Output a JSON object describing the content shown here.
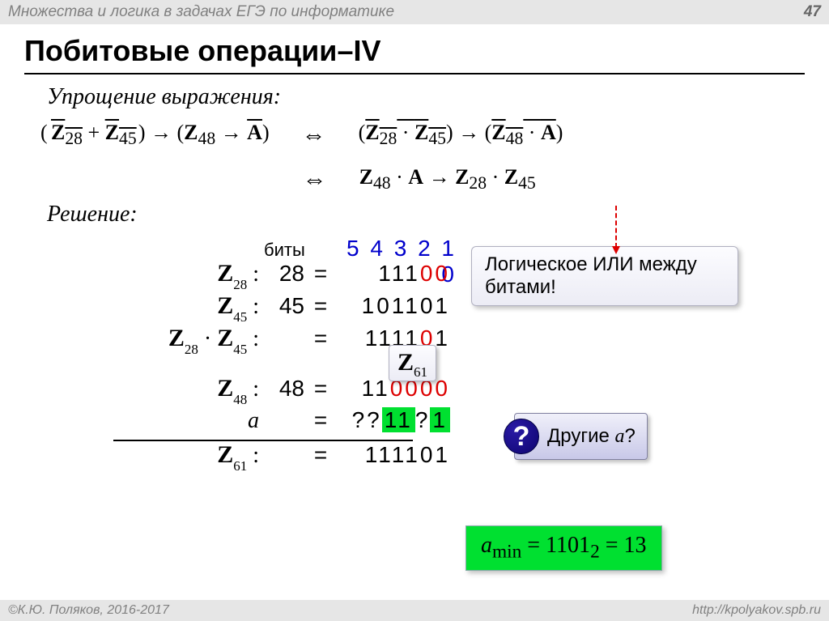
{
  "header": {
    "title": "Множества и логика в задачах ЕГЭ по информатике",
    "page": "47"
  },
  "title": "Побитовые операции–IV",
  "sub1": "Упрощение выражения:",
  "sub2": "Решение:",
  "formula": {
    "left": "(  <span class='over'><b>Z</b><sub>28</sub></span> + <span class='over'><b>Z</b><sub>45</sub></span> ) → (<b>Z</b><sub>48</sub> → <span class='over'><b>A</b></span>)",
    "r1": "(<span class='over'><b>Z</b><sub>28</sub> · <b>Z</b><sub>45</sub></span>) → (<span class='over'><b>Z</b><sub>48</sub> · <b>A</b></span>)",
    "r2": "<b>Z</b><sub>48</sub> · <b>A</b> → <b>Z</b><sub>28</sub> · <b>Z</b><sub>45</sub>"
  },
  "bits_label": "биты",
  "bits_idx": "5 4 3 2 1 0",
  "rows": [
    {
      "lab": "<span class='bZ'>Z</span><span class='sub'>28</span> :",
      "n": "28",
      "eq": "=",
      "bin": "111<span class='r'>00</span>"
    },
    {
      "lab": "<span class='bZ'>Z</span><span class='sub'>45</span> :",
      "n": "45",
      "eq": "=",
      "bin": "101101"
    },
    {
      "lab": "<span class='bZ'>Z</span><span class='sub'>28</span> · <span class='bZ'>Z</span><span class='sub'>45</span> :",
      "n": "",
      "eq": "=",
      "bin": "1111<span class='r'>0</span>1"
    }
  ],
  "rows2": [
    {
      "lab": "<span class='bZ'>Z</span><span class='sub'>48</span> :",
      "n": "48",
      "eq": "=",
      "bin": "11<span class='r'>0000</span>"
    },
    {
      "lab": "<span class='it serif'>a</span>",
      "n": "",
      "eq": "=",
      "bin": "??<span class='g-hl'>11</span>?<span class='g-hl'>1</span>"
    },
    {
      "lab": "<span class='bZ'>Z</span><span class='sub'>61</span> :",
      "n": "",
      "eq": "=",
      "bin": "111101"
    }
  ],
  "callout": "Логическое ИЛИ между битами!",
  "z61": "<span class='bZ serif'>Z</span><span class='sub serif'>61</span>",
  "question": "Другие <span class='it serif'>a</span>?",
  "answer": "<span class='it'>a</span><sub>min</sub> = 1101<sub>2</sub> = 13",
  "footer": {
    "left": "©К.Ю. Поляков, 2016-2017",
    "right": "http://kpolyakov.spb.ru"
  },
  "colors": {
    "blue": "#0000cc",
    "red": "#dd0000",
    "green": "#00e030",
    "grey": "#808080",
    "header_bg": "#e6e6e6"
  }
}
